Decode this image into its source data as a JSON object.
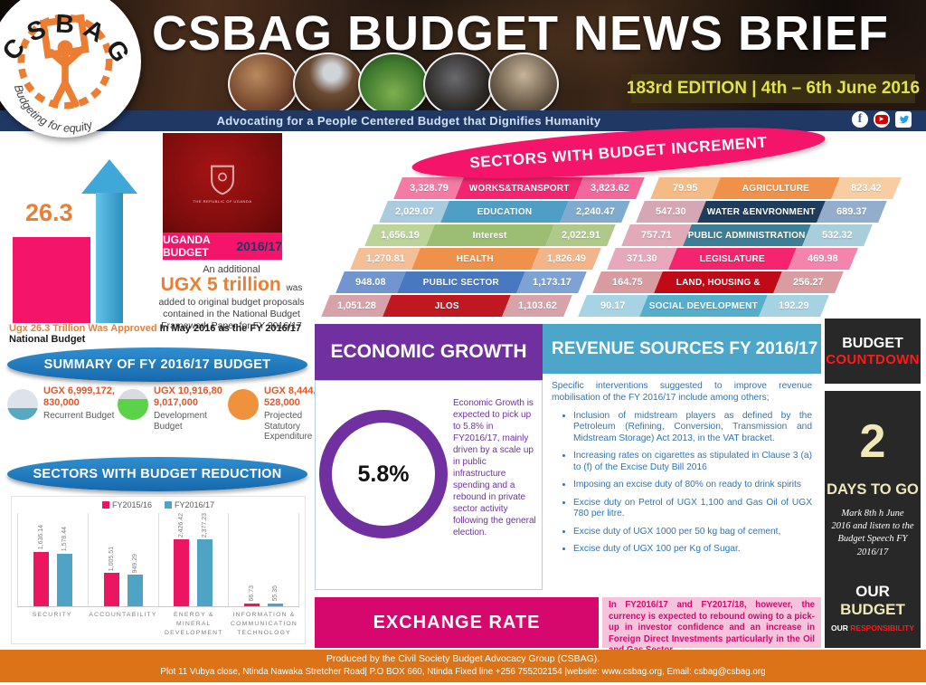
{
  "palette": {
    "pink": "#F4146A",
    "magenta": "#D6086E",
    "purple": "#7030A0",
    "pill_blue": "#1B7BC4",
    "revenue_header_blue": "#4BA6C9",
    "footer_orange": "#DC7318",
    "navy": "#203864",
    "countdown_dark": "#282828",
    "countdown_red": "#FF1A1A",
    "countdown_cream": "#EFE8B8",
    "accent_orange": "#ED7D31",
    "arrow_blue": "#3FA8D8"
  },
  "header": {
    "logo_text": "CSBAG",
    "logo_tagline": "Budgeting for equity",
    "title": "CSBAG BUDGET NEWS BRIEF",
    "edition": "183rd EDITION | 4th – 6th June 2016",
    "tagline": "Advocating for a People Centered Budget that Dignifies Humanity",
    "social": [
      "facebook",
      "youtube",
      "twitter"
    ]
  },
  "left": {
    "approved_value": "26.3",
    "book_emblem_text": "THE REPUBLIC OF UGANDA",
    "book_caption_1": "UGANDA BUDGET",
    "book_caption_2": "2016/17",
    "additional_intro": "An additional",
    "additional_amount": "UGX 5 trillion",
    "additional_was": "was",
    "additional_rest": "added to original budget proposals contained in the National Budget Framework Paper for FY 2016/17",
    "approved_highlight": "Ugx 26.3 Trillion Was Approved",
    "approved_rest": "In May 2016 as the FY 2016/17 National Budget"
  },
  "summary": {
    "title": "SUMMARY OF FY 2016/17 BUDGET",
    "items": [
      {
        "icon": "circle-teal-half",
        "amount": "UGX 6,999,172,830,000",
        "label": "Recurrent Budget"
      },
      {
        "icon": "circle-green-half",
        "amount": "UGX 10,916,809,017,000",
        "label": "Development Budget"
      },
      {
        "icon": "circle-orange",
        "amount": "UGX 8,444,469,528,000",
        "label": "Projected Statutory Expenditure"
      }
    ]
  },
  "reduction": {
    "title": "SECTORS WITH BUDGET REDUCTION",
    "chart_data": {
      "type": "bar",
      "categories": [
        "SECURITY",
        "ACCOUNTABILITY",
        "ENERGY & MINERAL DEVELOPMENT",
        "INFORMATION & COMMUNICATION TECHNOLOGY"
      ],
      "series": [
        {
          "name": "FY2015/16",
          "color": "#EC1561",
          "values": [
            1636.14,
            1005.51,
            2426.42,
            66.73
          ],
          "labels": [
            "1,636.14",
            "1,005.51",
            "2,426.42",
            "66.73"
          ]
        },
        {
          "name": "FY2016/17",
          "color": "#4FA3C4",
          "values": [
            1578.44,
            949.29,
            2377.23,
            55.35
          ],
          "labels": [
            "1,578.44",
            "949.29",
            "2,377.23",
            "55.35"
          ]
        }
      ],
      "title": "SECTORS WITH BUDGET REDUCTION",
      "xlabel": "",
      "ylabel": "",
      "ylim": [
        0,
        2600
      ],
      "grid": false,
      "legend_position": "top"
    }
  },
  "increment": {
    "title": "SECTORS WITH BUDGET INCREMENT",
    "rows": [
      {
        "l1": "3,328.79",
        "ll": "WORKS&TRANSPORT",
        "l2": "3,823.62",
        "r1": "79.95",
        "rl": "AGRICULTURE",
        "r2": "823.42"
      },
      {
        "l1": "2,029.07",
        "ll": "EDUCATION",
        "l2": "2,240.47",
        "r1": "547.30",
        "rl": "WATER &ENVRONMENT",
        "r2": "689.37"
      },
      {
        "l1": "1,656.19",
        "ll": "Interest",
        "l2": "2,022.91",
        "r1": "757.71",
        "rl": "PUBLIC ADMINISTRATION",
        "r2": "532.32"
      },
      {
        "l1": "1,270.81",
        "ll": "HEALTH",
        "l2": "1,826.49",
        "r1": "371.30",
        "rl": "LEGISLATURE",
        "r2": "469.98"
      },
      {
        "l1": "948.08",
        "ll": "PUBLIC SECTOR",
        "l2": "1,173.17",
        "r1": "164.75",
        "rl": "LAND, HOUSING &",
        "r2": "256.27"
      },
      {
        "l1": "1,051.28",
        "ll": "JLOS",
        "l2": "1,103.62",
        "r1": "90.17",
        "rl": "SOCIAL DEVELOPMENT",
        "r2": "192.29"
      }
    ]
  },
  "economic_growth": {
    "title": "ECONOMIC GROWTH",
    "rate": "5.8%",
    "body": "Economic Growth is expected to pick up to 5.8% in FY2016/17, mainly driven by a scale up in public infrastructure spending and a rebound in private sector activity following the general election."
  },
  "revenue": {
    "title": "REVENUE SOURCES FY 2016/17",
    "intro": "Specific interventions suggested to improve revenue mobilisation of the FY 2016/17 include among others;",
    "bullets": [
      "Inclusion of midstream players as defined by the Petroleum (Refining, Conversion, Transmission and Midstream Storage) Act 2013, in the VAT bracket.",
      "Increasing rates on cigarettes as stipulated in Clause 3 (a) to (f) of the Excise Duty Bill 2016",
      "Imposing an excise duty of 80% on ready to drink spirits",
      "Excise duty on Petrol of UGX 1,100 and Gas Oil of UGX 780 per litre.",
      "Excise duty of UGX 1000 per 50 kg bag of cement,",
      "Excise duty of UGX 100 per Kg of Sugar."
    ]
  },
  "countdown": {
    "title_1": "BUDGET",
    "title_2": "COUNTDOWN",
    "days": "2",
    "days_label": "DAYS TO GO",
    "note": "Mark 8th h June 2016 and listen to the Budget Speech FY 2016/17",
    "slogan_our": "OUR ",
    "slogan_budget": "BUDGET",
    "slogan_our2": "OUR ",
    "slogan_resp": "RESPONSIBILITY"
  },
  "exchange": {
    "title": "EXCHANGE RATE",
    "body": "In FY2016/17 and FY2017/18, however, the currency is expected to rebound owing to a pick-up in investor confidence and an increase in Foreign Direct Investments particularly in the Oil and Gas Sector."
  },
  "footer": {
    "line1": "Produced by the Civil Society Budget Advocacy Group (CSBAG).",
    "line2": "Plot 11 Vubya close, Ntinda Nawaka Stretcher Road| P.O BOX 660, Ntinda Fixed line +256 755202154 |website: www.csbag.org, Email: csbag@csbag.org"
  }
}
